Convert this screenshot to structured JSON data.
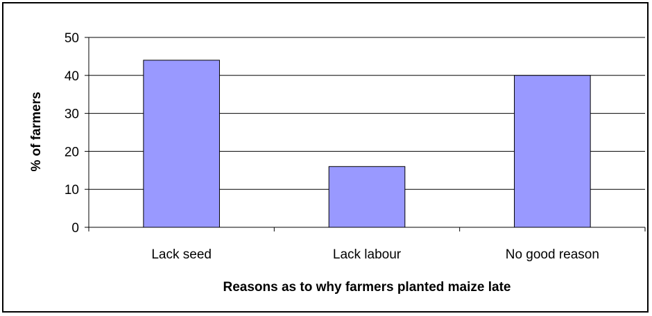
{
  "chart_data": {
    "type": "bar",
    "categories": [
      "Lack seed",
      "Lack labour",
      "No good reason"
    ],
    "values": [
      44,
      16,
      40
    ],
    "title": "",
    "xlabel": "Reasons as to why farmers planted maize late",
    "ylabel": "% of farmers",
    "ylim": [
      0,
      50
    ],
    "yticks": [
      0,
      10,
      20,
      30,
      40,
      50
    ],
    "grid": true,
    "legend": "none",
    "colors": {
      "bar_fill": "#9999ff",
      "bar_stroke": "#000000",
      "gridline": "#000000",
      "background": "#ffffff"
    }
  }
}
